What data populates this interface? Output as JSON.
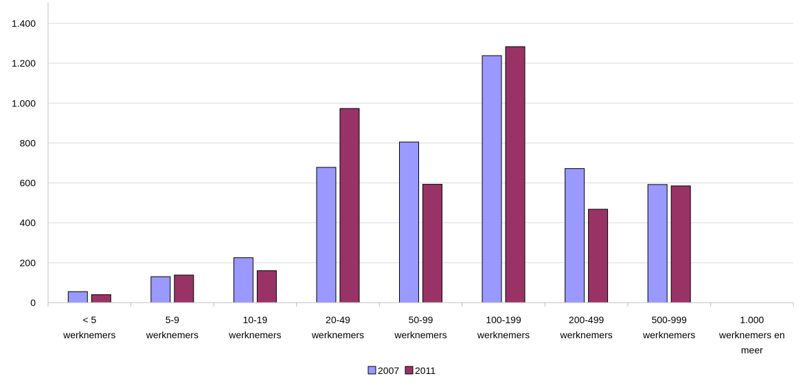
{
  "chart_data": {
    "type": "bar",
    "title": "",
    "xlabel": "",
    "ylabel": "",
    "ylim": [
      0,
      1400
    ],
    "yticks": [
      0,
      200,
      400,
      600,
      800,
      1000,
      1200,
      1400
    ],
    "ytick_labels": [
      "0",
      "200",
      "400",
      "600",
      "800",
      "1.000",
      "1.200",
      "1.400"
    ],
    "grid": true,
    "legend_position": "bottom",
    "categories": [
      [
        "< 5",
        "werknemers"
      ],
      [
        "5-9",
        "werknemers"
      ],
      [
        "10-19",
        "werknemers"
      ],
      [
        "20-49",
        "werknemers"
      ],
      [
        "50-99",
        "werknemers"
      ],
      [
        "100-199",
        "werknemers"
      ],
      [
        "200-499",
        "werknemers"
      ],
      [
        "500-999",
        "werknemers"
      ],
      [
        "1.000",
        "werknemers en",
        "meer"
      ]
    ],
    "series": [
      {
        "name": "2007",
        "color": "#9999ff",
        "values": [
          55,
          130,
          225,
          678,
          805,
          1238,
          672,
          592,
          0
        ]
      },
      {
        "name": "2011",
        "color": "#993366",
        "values": [
          40,
          138,
          160,
          973,
          593,
          1283,
          468,
          585,
          0
        ]
      }
    ]
  }
}
